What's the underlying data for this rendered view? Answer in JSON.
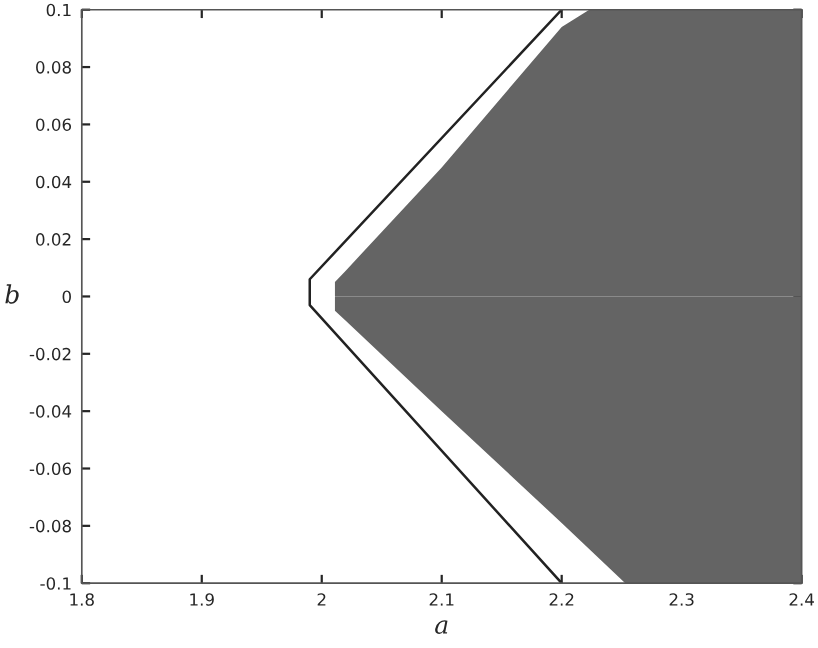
{
  "chart_data": {
    "type": "area",
    "xlabel": "a",
    "ylabel": "b",
    "xlim": [
      1.8,
      2.4
    ],
    "ylim": [
      -0.1,
      0.1
    ],
    "xticks": [
      1.8,
      1.9,
      2,
      2.1,
      2.2,
      2.3,
      2.4
    ],
    "yticks": [
      -0.1,
      -0.08,
      -0.06,
      -0.04,
      -0.02,
      0,
      0.02,
      0.04,
      0.06,
      0.08,
      0.1
    ],
    "grid": false,
    "legend": false,
    "series": [
      {
        "color": "#646464",
        "x": [
          2.011,
          2.02,
          2.1,
          2.2,
          2.223,
          2.4
        ],
        "values": [
          0.005,
          0.009,
          0.045,
          0.094,
          0.1,
          0.1
        ]
      },
      {
        "color": "#646464",
        "x": [
          2.011,
          2.02,
          2.1,
          2.2,
          2.253,
          2.4
        ],
        "values": [
          -0.005,
          -0.0085,
          -0.04,
          -0.079,
          -0.1,
          -0.1
        ]
      },
      {
        "type": "line",
        "color": "#222222",
        "x": [
          2.2,
          1.99,
          1.99,
          2.2
        ],
        "values": [
          0.1,
          0.006,
          -0.003,
          -0.1
        ]
      }
    ]
  }
}
